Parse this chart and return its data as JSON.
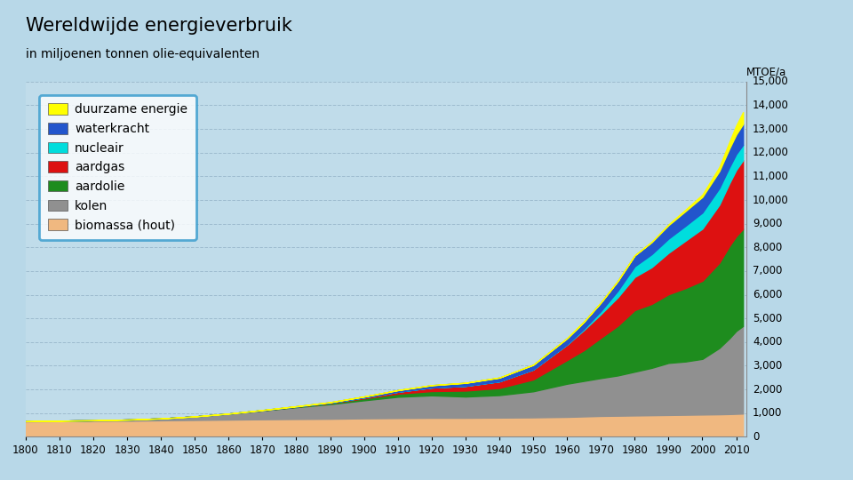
{
  "title": "Wereldwijde energieverbruik",
  "subtitle": "in miljoenen tonnen olie-equivalenten",
  "ylabel": "MTOE/a",
  "bg_color": "#b8d8e8",
  "plot_bg": "#c0dcea",
  "ylim": [
    0,
    15000
  ],
  "yticks": [
    0,
    1000,
    2000,
    3000,
    4000,
    5000,
    6000,
    7000,
    8000,
    9000,
    10000,
    11000,
    12000,
    13000,
    14000,
    15000
  ],
  "years": [
    1800,
    1810,
    1820,
    1830,
    1840,
    1850,
    1860,
    1870,
    1880,
    1890,
    1900,
    1910,
    1920,
    1930,
    1940,
    1950,
    1960,
    1965,
    1970,
    1975,
    1980,
    1985,
    1990,
    1995,
    2000,
    2005,
    2008,
    2010,
    2012
  ],
  "biomassa": [
    650,
    660,
    670,
    680,
    695,
    710,
    725,
    740,
    750,
    760,
    780,
    790,
    800,
    800,
    810,
    820,
    840,
    860,
    880,
    890,
    900,
    910,
    920,
    930,
    940,
    950,
    960,
    970,
    980
  ],
  "kolen": [
    10,
    18,
    28,
    45,
    80,
    150,
    250,
    370,
    500,
    620,
    760,
    900,
    950,
    900,
    950,
    1100,
    1400,
    1500,
    1600,
    1700,
    1850,
    2000,
    2200,
    2250,
    2350,
    2800,
    3200,
    3500,
    3700
  ],
  "aardolie": [
    0,
    0,
    0,
    0,
    0,
    0,
    5,
    10,
    20,
    40,
    80,
    130,
    180,
    250,
    300,
    500,
    1000,
    1300,
    1700,
    2100,
    2600,
    2700,
    2900,
    3100,
    3300,
    3600,
    3900,
    4000,
    4100
  ],
  "aardgas": [
    0,
    0,
    0,
    0,
    0,
    0,
    0,
    5,
    10,
    20,
    40,
    80,
    150,
    200,
    280,
    420,
    650,
    850,
    1000,
    1200,
    1400,
    1550,
    1750,
    2000,
    2200,
    2450,
    2650,
    2800,
    2900
  ],
  "nucleair": [
    0,
    0,
    0,
    0,
    0,
    0,
    0,
    0,
    0,
    0,
    0,
    0,
    0,
    0,
    0,
    0,
    10,
    50,
    130,
    280,
    450,
    550,
    600,
    630,
    680,
    700,
    680,
    670,
    650
  ],
  "waterkracht": [
    0,
    0,
    0,
    0,
    0,
    0,
    0,
    5,
    10,
    20,
    40,
    70,
    100,
    130,
    160,
    200,
    260,
    300,
    360,
    410,
    460,
    510,
    570,
    620,
    660,
    720,
    790,
    830,
    880
  ],
  "duurzame": [
    0,
    0,
    0,
    0,
    0,
    0,
    0,
    0,
    0,
    0,
    0,
    0,
    0,
    0,
    0,
    0,
    0,
    0,
    0,
    0,
    5,
    10,
    30,
    60,
    100,
    170,
    280,
    380,
    500
  ],
  "colors": {
    "biomassa": "#f0b880",
    "kolen": "#909090",
    "aardolie": "#1e8c1e",
    "aardgas": "#dd1111",
    "nucleair": "#00dddd",
    "waterkracht": "#2255cc",
    "duurzame": "#ffff00"
  },
  "labels": {
    "duurzame": "duurzame energie",
    "waterkracht": "waterkracht",
    "nucleair": "nucleair",
    "aardgas": "aardgas",
    "aardolie": "aardolie",
    "kolen": "kolen",
    "biomassa": "biomassa (hout)"
  }
}
